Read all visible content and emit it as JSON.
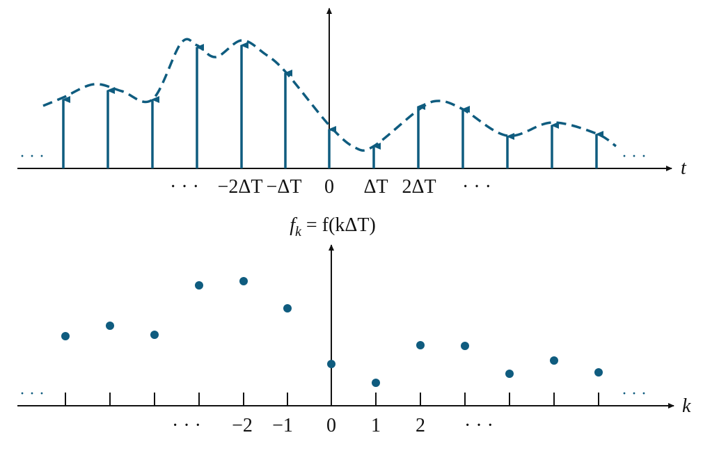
{
  "top": {
    "left_dots": "· · ·",
    "right_dots": "· · ·",
    "axis_label": "t",
    "tick_labels": [
      "· · ·",
      "−2ΔT",
      "−ΔT",
      "0",
      "ΔT",
      "2ΔT",
      "· · ·"
    ]
  },
  "formula": {
    "base": "f",
    "subscript": "k",
    "rest": " = f(kΔT)"
  },
  "bottom": {
    "left_dots": "· · ·",
    "right_dots": "· · ·",
    "axis_label": "k",
    "tick_labels": [
      "· · ·",
      "−2",
      "−1",
      "0",
      "1",
      "2",
      "· · ·"
    ]
  }
}
